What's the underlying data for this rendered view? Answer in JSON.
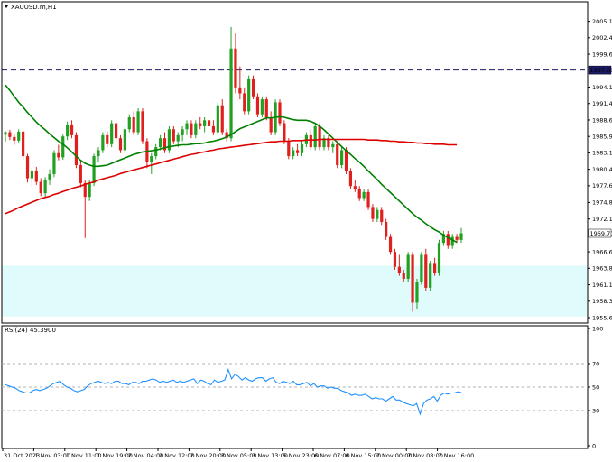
{
  "chart_data": {
    "type": "candlestick",
    "title": "XAUUSD.m,H1",
    "price_axis": {
      "ticks": [
        "2005.15",
        "2002.40",
        "1999.65",
        "1994.15",
        "1991.40",
        "1988.65",
        "1985.90",
        "1983.15",
        "1980.40",
        "1977.65",
        "1974.85",
        "1972.10",
        "1966.60",
        "1963.85",
        "1961.10",
        "1958.35",
        "1955.60"
      ],
      "ylim": [
        1955.0,
        2006.6
      ]
    },
    "horizontal_line": {
      "value": 1997.0,
      "label": "1997.00",
      "style": "dashed",
      "color": "#1a1a66"
    },
    "current_price": {
      "value": 1969.71,
      "label": "1969.71"
    },
    "support_zone": {
      "from": 1955.8,
      "to": 1964.3,
      "color": "#e0fbfb"
    },
    "moving_averages": [
      {
        "color": "#008000",
        "key": "ma_fast"
      },
      {
        "color": "#dd0000",
        "key": "ma_slow"
      }
    ],
    "candles": [
      [
        1986.2,
        1986.8,
        1985.0,
        1986.6
      ],
      [
        1986.6,
        1987.0,
        1985.3,
        1985.8
      ],
      [
        1985.8,
        1986.4,
        1984.5,
        1985.2
      ],
      [
        1985.2,
        1987.1,
        1984.8,
        1986.7
      ],
      [
        1986.7,
        1986.9,
        1982.0,
        1982.6
      ],
      [
        1982.6,
        1983.0,
        1978.2,
        1978.9
      ],
      [
        1978.9,
        1980.6,
        1977.6,
        1980.1
      ],
      [
        1980.1,
        1980.8,
        1977.8,
        1978.3
      ],
      [
        1978.3,
        1978.9,
        1975.9,
        1976.4
      ],
      [
        1976.4,
        1979.1,
        1975.8,
        1978.7
      ],
      [
        1978.7,
        1980.4,
        1977.8,
        1979.6
      ],
      [
        1979.6,
        1983.6,
        1979.1,
        1983.1
      ],
      [
        1983.1,
        1984.5,
        1981.9,
        1982.4
      ],
      [
        1982.4,
        1986.2,
        1982.0,
        1985.9
      ],
      [
        1985.9,
        1988.4,
        1985.3,
        1987.9
      ],
      [
        1987.9,
        1988.6,
        1985.6,
        1986.1
      ],
      [
        1986.1,
        1986.6,
        1980.6,
        1981.1
      ],
      [
        1981.1,
        1981.8,
        1977.4,
        1978.1
      ],
      [
        1978.1,
        1978.6,
        1968.9,
        1975.8
      ],
      [
        1975.8,
        1978.6,
        1975.1,
        1978.1
      ],
      [
        1978.1,
        1983.0,
        1977.6,
        1982.6
      ],
      [
        1982.6,
        1984.1,
        1981.6,
        1983.6
      ],
      [
        1983.6,
        1986.6,
        1983.1,
        1986.1
      ],
      [
        1986.1,
        1986.8,
        1984.1,
        1984.6
      ],
      [
        1984.6,
        1988.6,
        1984.1,
        1988.1
      ],
      [
        1988.1,
        1988.6,
        1985.1,
        1985.6
      ],
      [
        1985.6,
        1986.1,
        1983.1,
        1983.6
      ],
      [
        1983.6,
        1987.6,
        1983.1,
        1987.1
      ],
      [
        1987.1,
        1989.6,
        1986.6,
        1989.1
      ],
      [
        1989.1,
        1990.1,
        1986.1,
        1986.6
      ],
      [
        1986.6,
        1990.6,
        1986.1,
        1990.1
      ],
      [
        1990.1,
        1990.6,
        1984.6,
        1985.1
      ],
      [
        1985.1,
        1985.6,
        1980.6,
        1981.6
      ],
      [
        1981.6,
        1983.1,
        1979.6,
        1982.6
      ],
      [
        1982.6,
        1984.6,
        1982.1,
        1984.1
      ],
      [
        1984.1,
        1986.1,
        1983.6,
        1985.6
      ],
      [
        1985.6,
        1986.6,
        1983.1,
        1983.6
      ],
      [
        1983.6,
        1987.6,
        1983.1,
        1987.1
      ],
      [
        1987.1,
        1987.6,
        1984.6,
        1985.1
      ],
      [
        1985.1,
        1986.6,
        1984.1,
        1986.1
      ],
      [
        1986.1,
        1987.6,
        1985.1,
        1987.1
      ],
      [
        1987.1,
        1988.6,
        1986.1,
        1988.1
      ],
      [
        1988.1,
        1988.6,
        1985.6,
        1986.1
      ],
      [
        1986.1,
        1988.6,
        1985.6,
        1988.1
      ],
      [
        1988.1,
        1989.1,
        1987.1,
        1987.6
      ],
      [
        1987.6,
        1989.1,
        1986.6,
        1988.6
      ],
      [
        1988.6,
        1991.1,
        1987.1,
        1987.6
      ],
      [
        1987.6,
        1988.6,
        1986.1,
        1986.6
      ],
      [
        1986.6,
        1991.6,
        1986.1,
        1991.1
      ],
      [
        1991.1,
        1992.1,
        1986.1,
        1986.6
      ],
      [
        1986.6,
        1987.1,
        1985.1,
        1985.6
      ],
      [
        1985.6,
        2004.2,
        1985.1,
        2000.6
      ],
      [
        2000.6,
        2003.1,
        1993.1,
        1994.1
      ],
      [
        1994.1,
        1997.6,
        1992.1,
        1993.1
      ],
      [
        1993.1,
        1994.1,
        1989.6,
        1990.1
      ],
      [
        1990.1,
        1996.1,
        1989.6,
        1995.6
      ],
      [
        1995.6,
        1996.1,
        1992.1,
        1992.6
      ],
      [
        1992.6,
        1993.1,
        1989.1,
        1989.6
      ],
      [
        1989.6,
        1992.6,
        1989.1,
        1992.1
      ],
      [
        1992.1,
        1992.6,
        1988.6,
        1989.1
      ],
      [
        1989.1,
        1990.1,
        1986.1,
        1986.6
      ],
      [
        1986.6,
        1992.1,
        1986.1,
        1991.6
      ],
      [
        1991.6,
        1992.1,
        1987.6,
        1988.1
      ],
      [
        1988.1,
        1988.6,
        1984.6,
        1985.1
      ],
      [
        1985.1,
        1985.6,
        1982.1,
        1982.6
      ],
      [
        1982.6,
        1984.1,
        1982.1,
        1983.6
      ],
      [
        1983.6,
        1984.6,
        1982.6,
        1983.1
      ],
      [
        1983.1,
        1985.1,
        1982.6,
        1984.6
      ],
      [
        1984.6,
        1986.6,
        1984.1,
        1986.1
      ],
      [
        1986.1,
        1987.1,
        1983.6,
        1984.1
      ],
      [
        1984.1,
        1988.1,
        1983.6,
        1987.6
      ],
      [
        1987.6,
        1988.1,
        1983.6,
        1984.1
      ],
      [
        1984.1,
        1986.1,
        1983.6,
        1985.6
      ],
      [
        1985.6,
        1986.1,
        1983.6,
        1984.1
      ],
      [
        1984.1,
        1985.1,
        1983.1,
        1984.6
      ],
      [
        1984.6,
        1985.1,
        1980.6,
        1981.1
      ],
      [
        1981.1,
        1984.1,
        1980.6,
        1983.6
      ],
      [
        1983.6,
        1984.1,
        1979.6,
        1980.1
      ],
      [
        1980.1,
        1980.6,
        1977.1,
        1977.6
      ],
      [
        1977.6,
        1978.6,
        1976.6,
        1977.1
      ],
      [
        1977.1,
        1977.6,
        1975.1,
        1975.6
      ],
      [
        1975.6,
        1977.1,
        1975.1,
        1976.6
      ],
      [
        1976.6,
        1977.1,
        1973.6,
        1974.1
      ],
      [
        1974.1,
        1974.6,
        1971.6,
        1972.1
      ],
      [
        1972.1,
        1974.1,
        1971.6,
        1973.6
      ],
      [
        1973.6,
        1974.1,
        1971.1,
        1971.6
      ],
      [
        1971.6,
        1972.1,
        1968.6,
        1969.1
      ],
      [
        1969.1,
        1969.6,
        1966.1,
        1966.6
      ],
      [
        1966.6,
        1967.1,
        1963.6,
        1964.1
      ],
      [
        1964.1,
        1966.1,
        1962.6,
        1963.1
      ],
      [
        1963.1,
        1963.6,
        1961.6,
        1962.1
      ],
      [
        1962.1,
        1966.6,
        1961.6,
        1966.1
      ],
      [
        1966.1,
        1966.6,
        1956.6,
        1958.1
      ],
      [
        1958.1,
        1962.1,
        1957.1,
        1961.6
      ],
      [
        1961.6,
        1966.6,
        1961.1,
        1966.1
      ],
      [
        1966.1,
        1967.1,
        1960.1,
        1960.6
      ],
      [
        1960.6,
        1965.1,
        1960.1,
        1964.6
      ],
      [
        1964.6,
        1965.6,
        1962.6,
        1963.1
      ],
      [
        1963.1,
        1968.6,
        1962.6,
        1968.1
      ],
      [
        1968.1,
        1970.1,
        1967.6,
        1969.6
      ],
      [
        1969.6,
        1970.1,
        1967.1,
        1967.6
      ],
      [
        1967.6,
        1969.6,
        1967.1,
        1969.1
      ],
      [
        1969.1,
        1969.6,
        1968.1,
        1968.6
      ],
      [
        1968.6,
        1970.6,
        1968.1,
        1969.71
      ]
    ],
    "ma_fast": [
      1994.5,
      1993.6,
      1992.6,
      1991.6,
      1990.8,
      1989.9,
      1989.1,
      1988.3,
      1987.6,
      1987.0,
      1986.3,
      1985.7,
      1985.1,
      1984.6,
      1984.0,
      1983.3,
      1982.6,
      1981.9,
      1981.4,
      1981.1,
      1980.9,
      1980.9,
      1981.0,
      1981.1,
      1981.4,
      1981.7,
      1982.0,
      1982.3,
      1982.6,
      1982.9,
      1983.1,
      1983.3,
      1983.4,
      1983.5,
      1983.6,
      1983.8,
      1984.0,
      1984.2,
      1984.3,
      1984.4,
      1984.5,
      1984.5,
      1984.6,
      1984.7,
      1984.7,
      1984.8,
      1985.0,
      1985.1,
      1985.3,
      1985.5,
      1985.8,
      1986.2,
      1986.7,
      1987.2,
      1987.5,
      1987.8,
      1988.1,
      1988.4,
      1988.7,
      1989.0,
      1989.0,
      1989.1,
      1989.2,
      1989.1,
      1988.9,
      1988.7,
      1988.6,
      1988.6,
      1988.6,
      1988.4,
      1988.1,
      1987.6,
      1987.0,
      1986.3,
      1985.6,
      1984.9,
      1984.2,
      1983.5,
      1982.9,
      1982.2,
      1981.6,
      1980.9,
      1980.1,
      1979.4,
      1978.7,
      1977.9,
      1977.2,
      1976.5,
      1975.8,
      1975.1,
      1974.4,
      1973.7,
      1973.0,
      1972.4,
      1971.9,
      1971.3,
      1970.8,
      1970.3,
      1969.9,
      1969.4,
      1969.0,
      1968.6,
      1968.2
    ],
    "ma_slow": [
      1973.0,
      1973.3,
      1973.6,
      1974.0,
      1974.3,
      1974.6,
      1974.9,
      1975.2,
      1975.5,
      1975.7,
      1975.9,
      1976.2,
      1976.4,
      1976.7,
      1976.9,
      1977.2,
      1977.4,
      1977.6,
      1977.9,
      1978.1,
      1978.3,
      1978.6,
      1978.8,
      1979.0,
      1979.2,
      1979.4,
      1979.7,
      1979.9,
      1980.1,
      1980.3,
      1980.5,
      1980.7,
      1980.9,
      1981.1,
      1981.3,
      1981.5,
      1981.7,
      1981.9,
      1982.1,
      1982.3,
      1982.5,
      1982.7,
      1982.9,
      1983.0,
      1983.2,
      1983.3,
      1983.5,
      1983.6,
      1983.8,
      1983.9,
      1984.0,
      1984.1,
      1984.2,
      1984.3,
      1984.4,
      1984.5,
      1984.6,
      1984.7,
      1984.8,
      1984.9,
      1985.0,
      1985.0,
      1985.1,
      1985.1,
      1985.1,
      1985.2,
      1985.2,
      1985.2,
      1985.3,
      1985.3,
      1985.3,
      1985.4,
      1985.4,
      1985.4,
      1985.4,
      1985.4,
      1985.4,
      1985.4,
      1985.4,
      1985.4,
      1985.4,
      1985.4,
      1985.3,
      1985.3,
      1985.3,
      1985.2,
      1985.2,
      1985.1,
      1985.1,
      1985.0,
      1985.0,
      1984.9,
      1984.9,
      1984.8,
      1984.8,
      1984.7,
      1984.7,
      1984.6,
      1984.6,
      1984.6,
      1984.5,
      1984.5,
      1984.5
    ],
    "rsi": {
      "label": "RSI(24) 45.3900",
      "ylim": [
        0,
        100
      ],
      "ticks": [
        "100",
        "70",
        "50",
        "30",
        "0"
      ],
      "levels": [
        70,
        50,
        30
      ],
      "color": "#1e90ff",
      "values": [
        52,
        51,
        50,
        49,
        47,
        46,
        45,
        45,
        47,
        48,
        47,
        48,
        49,
        51,
        53,
        54,
        55,
        52,
        50,
        49,
        47,
        46,
        47,
        48,
        51,
        53,
        54,
        55,
        54,
        53,
        54,
        53,
        55,
        55,
        53,
        53,
        52,
        54,
        54,
        53,
        55,
        55,
        56,
        57,
        56,
        54,
        55,
        54,
        55,
        56,
        54,
        55,
        54,
        55,
        56,
        57,
        53,
        56,
        55,
        53,
        52,
        56,
        54,
        55,
        56,
        65,
        57,
        61,
        59,
        56,
        58,
        56,
        55,
        57,
        58,
        58,
        55,
        57,
        58,
        54,
        53,
        55,
        54,
        53,
        55,
        52,
        52,
        53,
        54,
        51,
        53,
        50,
        51,
        51,
        49,
        50,
        49,
        49,
        47,
        46,
        45,
        43,
        44,
        43,
        43,
        44,
        42,
        40,
        41,
        40,
        40,
        38,
        40,
        42,
        39,
        39,
        37,
        36,
        35,
        34,
        36,
        27,
        36,
        39,
        40,
        42,
        38,
        43,
        45,
        44,
        45,
        45,
        46,
        45.39
      ]
    },
    "time_axis": [
      "31 Oct 2023",
      "1 Nov 03:00",
      "1 Nov 11:00",
      "1 Nov 19:00",
      "2 Nov 04:00",
      "2 Nov 12:00",
      "2 Nov 20:00",
      "3 Nov 05:00",
      "3 Nov 13:00",
      "5 Nov 23:00",
      "6 Nov 07:00",
      "6 Nov 15:00",
      "7 Nov 00:00",
      "7 Nov 08:00",
      "7 Nov 16:00"
    ]
  }
}
